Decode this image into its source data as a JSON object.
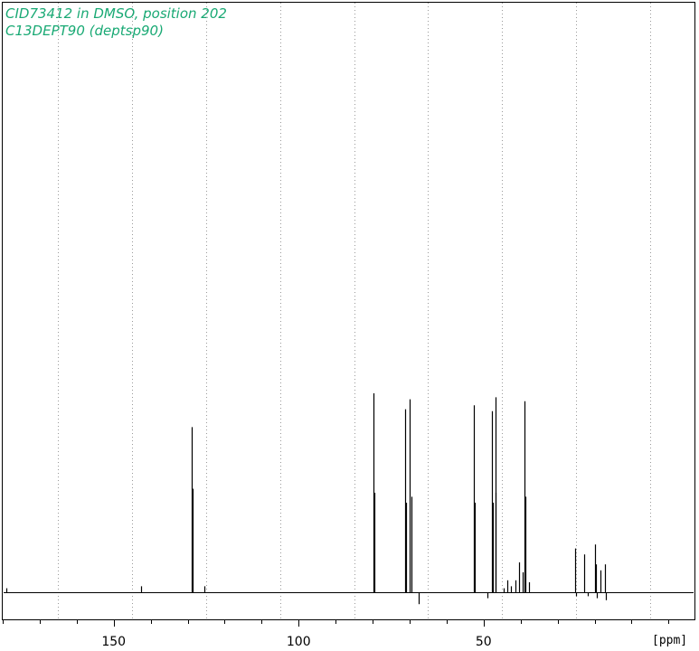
{
  "titles": {
    "line1": "CID73412 in DMSO, position 202",
    "line2": "C13DEPT90 (deptsp90)",
    "color": "#19a974"
  },
  "colors": {
    "spectrum": "#000000",
    "grid": "#9a9a9a",
    "frame": "#000000"
  },
  "chart_data": {
    "type": "line",
    "xlabel": "[ppm]",
    "xlim": [
      180,
      -7
    ],
    "x_reversed": true,
    "major_ticks": [
      150,
      100,
      50
    ],
    "minor_tick_step": 10,
    "grid": "dotted vertical lines at 165, 145, 125, 105, 85, 65, 45, 25, 5 ppm",
    "grid_lines": [
      165,
      145,
      125,
      105,
      85,
      65,
      45,
      25,
      5
    ],
    "intensity_units": "relative (max = 1.0)",
    "baseline": 0,
    "peaks": [
      {
        "ppm": 179.0,
        "intensity": 0.02
      },
      {
        "ppm": 142.5,
        "intensity": 0.03
      },
      {
        "ppm": 129.0,
        "intensity": 0.83
      },
      {
        "ppm": 128.7,
        "intensity": 0.52
      },
      {
        "ppm": 125.5,
        "intensity": 0.03
      },
      {
        "ppm": 79.8,
        "intensity": 1.0
      },
      {
        "ppm": 79.6,
        "intensity": 0.5
      },
      {
        "ppm": 71.3,
        "intensity": 0.92
      },
      {
        "ppm": 71.0,
        "intensity": 0.45
      },
      {
        "ppm": 69.9,
        "intensity": 0.97
      },
      {
        "ppm": 69.6,
        "intensity": 0.48
      },
      {
        "ppm": 67.5,
        "intensity": -0.06
      },
      {
        "ppm": 52.6,
        "intensity": 0.94
      },
      {
        "ppm": 52.4,
        "intensity": 0.45
      },
      {
        "ppm": 48.9,
        "intensity": -0.03
      },
      {
        "ppm": 47.8,
        "intensity": 0.91
      },
      {
        "ppm": 47.5,
        "intensity": 0.45
      },
      {
        "ppm": 46.9,
        "intensity": 0.98
      },
      {
        "ppm": 46.7,
        "intensity": 0.5
      },
      {
        "ppm": 44.6,
        "intensity": 0.02
      },
      {
        "ppm": 43.6,
        "intensity": 0.06
      },
      {
        "ppm": 42.6,
        "intensity": 0.03
      },
      {
        "ppm": 41.3,
        "intensity": 0.06
      },
      {
        "ppm": 40.5,
        "intensity": 0.15
      },
      {
        "ppm": 39.5,
        "intensity": 0.1
      },
      {
        "ppm": 38.9,
        "intensity": 0.96
      },
      {
        "ppm": 38.6,
        "intensity": 0.48
      },
      {
        "ppm": 37.8,
        "intensity": 0.05
      },
      {
        "ppm": 25.3,
        "intensity": 0.22
      },
      {
        "ppm": 25.0,
        "intensity": -0.02
      },
      {
        "ppm": 22.8,
        "intensity": 0.19
      },
      {
        "ppm": 21.9,
        "intensity": -0.02
      },
      {
        "ppm": 20.0,
        "intensity": 0.24
      },
      {
        "ppm": 19.6,
        "intensity": 0.14
      },
      {
        "ppm": 19.3,
        "intensity": -0.03
      },
      {
        "ppm": 18.5,
        "intensity": 0.11
      },
      {
        "ppm": 17.3,
        "intensity": 0.14
      },
      {
        "ppm": 16.9,
        "intensity": -0.04
      }
    ]
  }
}
